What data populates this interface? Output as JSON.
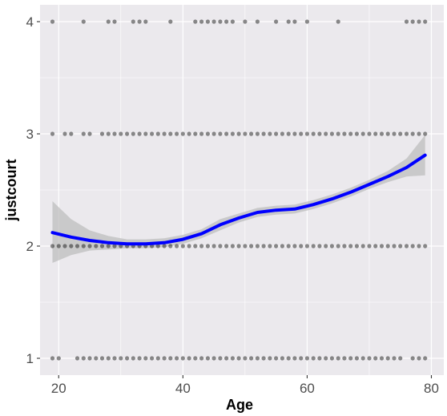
{
  "chart_data": {
    "type": "scatter",
    "title": "",
    "xlabel": "Age",
    "ylabel": "justcourt",
    "xlim": [
      17.0,
      82.0
    ],
    "ylim": [
      0.85,
      4.15
    ],
    "x_ticks": [
      20,
      40,
      60,
      80
    ],
    "y_ticks": [
      1,
      2,
      3,
      4
    ],
    "x_tick_labels": [
      "20",
      "40",
      "60",
      "80"
    ],
    "y_tick_labels": [
      "1",
      "2",
      "3",
      "4"
    ],
    "grid": true,
    "legend": "none",
    "colors": {
      "panel": "#ebe9ed",
      "grid": "#ffffff",
      "points": "#000000",
      "smooth_line": "#0000ff",
      "confidence_band": "#bebebe"
    },
    "points": [
      {
        "y": 4,
        "x": [
          19,
          24,
          28,
          29,
          32,
          33,
          34,
          38,
          42,
          43,
          44,
          45,
          46,
          47,
          48,
          50,
          52,
          55,
          57,
          58,
          60,
          65,
          76,
          77,
          78,
          79
        ]
      },
      {
        "y": 3,
        "x": [
          19,
          21,
          22,
          24,
          25,
          27,
          28,
          29,
          30,
          31,
          32,
          33,
          34,
          35,
          36,
          37,
          38,
          39,
          40,
          41,
          42,
          43,
          44,
          45,
          46,
          47,
          48,
          49,
          50,
          51,
          52,
          53,
          54,
          55,
          56,
          57,
          58,
          59,
          60,
          61,
          62,
          63,
          64,
          65,
          66,
          67,
          68,
          69,
          70,
          71,
          72,
          73,
          74,
          75,
          76,
          77,
          78,
          79
        ]
      },
      {
        "y": 2,
        "x": [
          19,
          20,
          21,
          22,
          23,
          24,
          25,
          26,
          27,
          28,
          29,
          30,
          31,
          32,
          33,
          34,
          35,
          36,
          37,
          38,
          39,
          40,
          41,
          42,
          43,
          44,
          45,
          46,
          47,
          48,
          49,
          50,
          51,
          52,
          53,
          54,
          55,
          56,
          57,
          58,
          59,
          60,
          61,
          62,
          63,
          64,
          65,
          66,
          67,
          68,
          69,
          70,
          71,
          72,
          73,
          74,
          75,
          76,
          77,
          78,
          79
        ]
      },
      {
        "y": 1,
        "x": [
          19,
          20,
          23,
          24,
          25,
          26,
          27,
          28,
          29,
          30,
          31,
          32,
          33,
          34,
          35,
          36,
          37,
          38,
          39,
          40,
          41,
          42,
          43,
          44,
          45,
          46,
          47,
          48,
          49,
          50,
          51,
          52,
          53,
          54,
          55,
          56,
          57,
          58,
          59,
          60,
          61,
          62,
          63,
          64,
          65,
          66,
          67,
          68,
          69,
          70,
          71,
          72,
          73,
          74,
          75,
          77,
          78,
          79
        ]
      }
    ],
    "smooth": {
      "x": [
        19,
        22,
        25,
        28,
        31,
        34,
        37,
        40,
        43,
        46,
        49,
        52,
        55,
        58,
        61,
        64,
        67,
        70,
        73,
        76,
        79
      ],
      "y": [
        2.12,
        2.08,
        2.05,
        2.03,
        2.02,
        2.02,
        2.03,
        2.06,
        2.11,
        2.19,
        2.25,
        2.3,
        2.32,
        2.33,
        2.37,
        2.42,
        2.48,
        2.55,
        2.62,
        2.7,
        2.81
      ],
      "lower": [
        1.85,
        1.92,
        1.96,
        1.97,
        1.98,
        1.98,
        1.99,
        2.02,
        2.07,
        2.14,
        2.21,
        2.26,
        2.28,
        2.29,
        2.33,
        2.38,
        2.44,
        2.51,
        2.57,
        2.62,
        2.63
      ],
      "upper": [
        2.4,
        2.24,
        2.14,
        2.09,
        2.06,
        2.06,
        2.07,
        2.1,
        2.15,
        2.24,
        2.29,
        2.34,
        2.36,
        2.37,
        2.41,
        2.46,
        2.52,
        2.59,
        2.67,
        2.78,
        2.99
      ]
    }
  }
}
